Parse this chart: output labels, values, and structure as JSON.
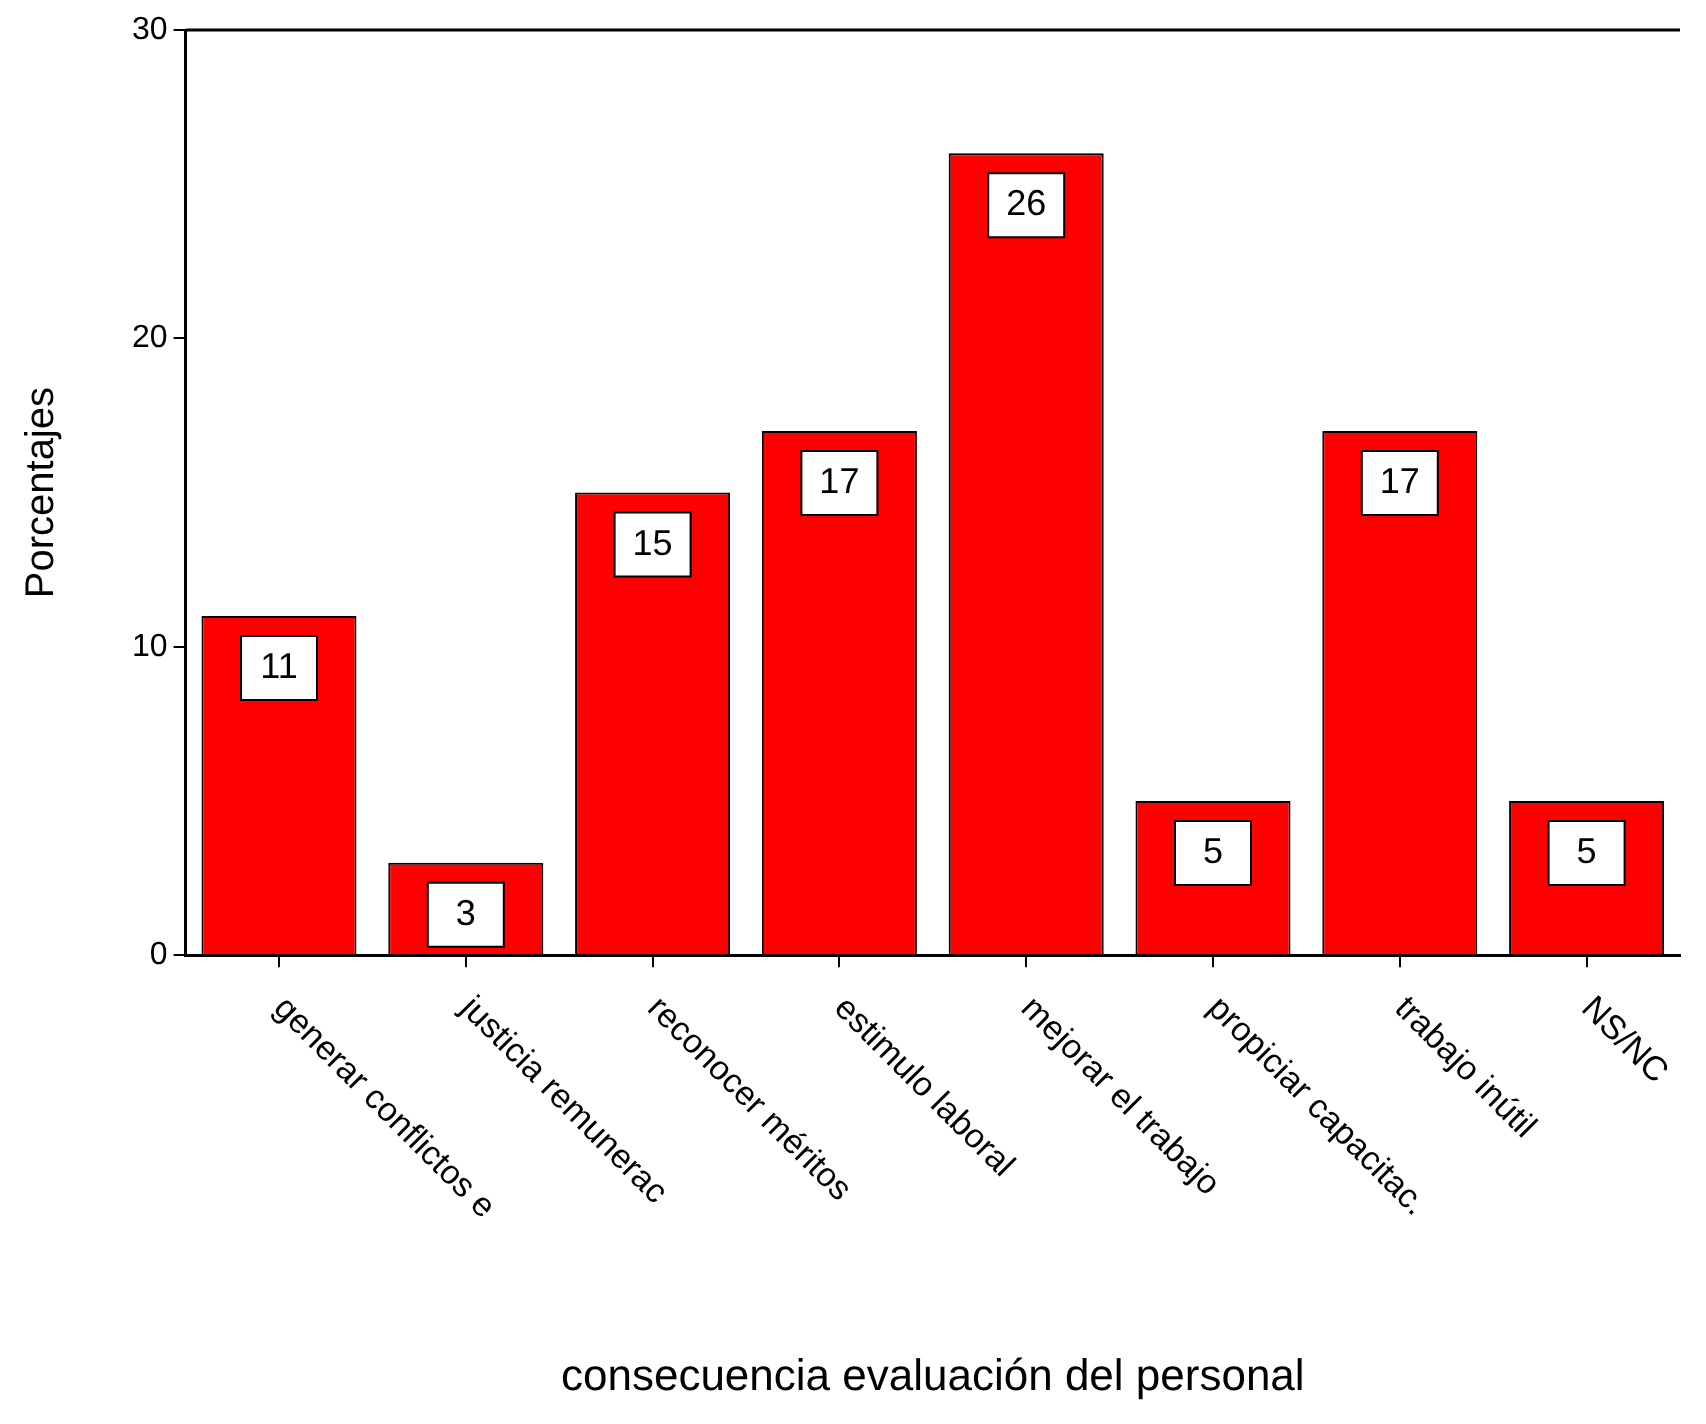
{
  "chart_data": {
    "type": "bar",
    "xlabel": "consecuencia evaluación del personal",
    "ylabel": "Porcentajes",
    "categories": [
      "generar conflictos e",
      "justicia remunerac",
      "reconocer méritos",
      "estimulo laboral",
      "mejorar el trabajo",
      "propiciar capacitac.",
      "trabajo inútil",
      "NS/NC"
    ],
    "values": [
      11,
      3,
      15,
      17,
      26,
      5,
      17,
      5
    ],
    "color": "#ff0000",
    "ylim": [
      0,
      30
    ],
    "yticks": [
      0,
      10,
      20,
      30
    ],
    "data_labels": true
  }
}
